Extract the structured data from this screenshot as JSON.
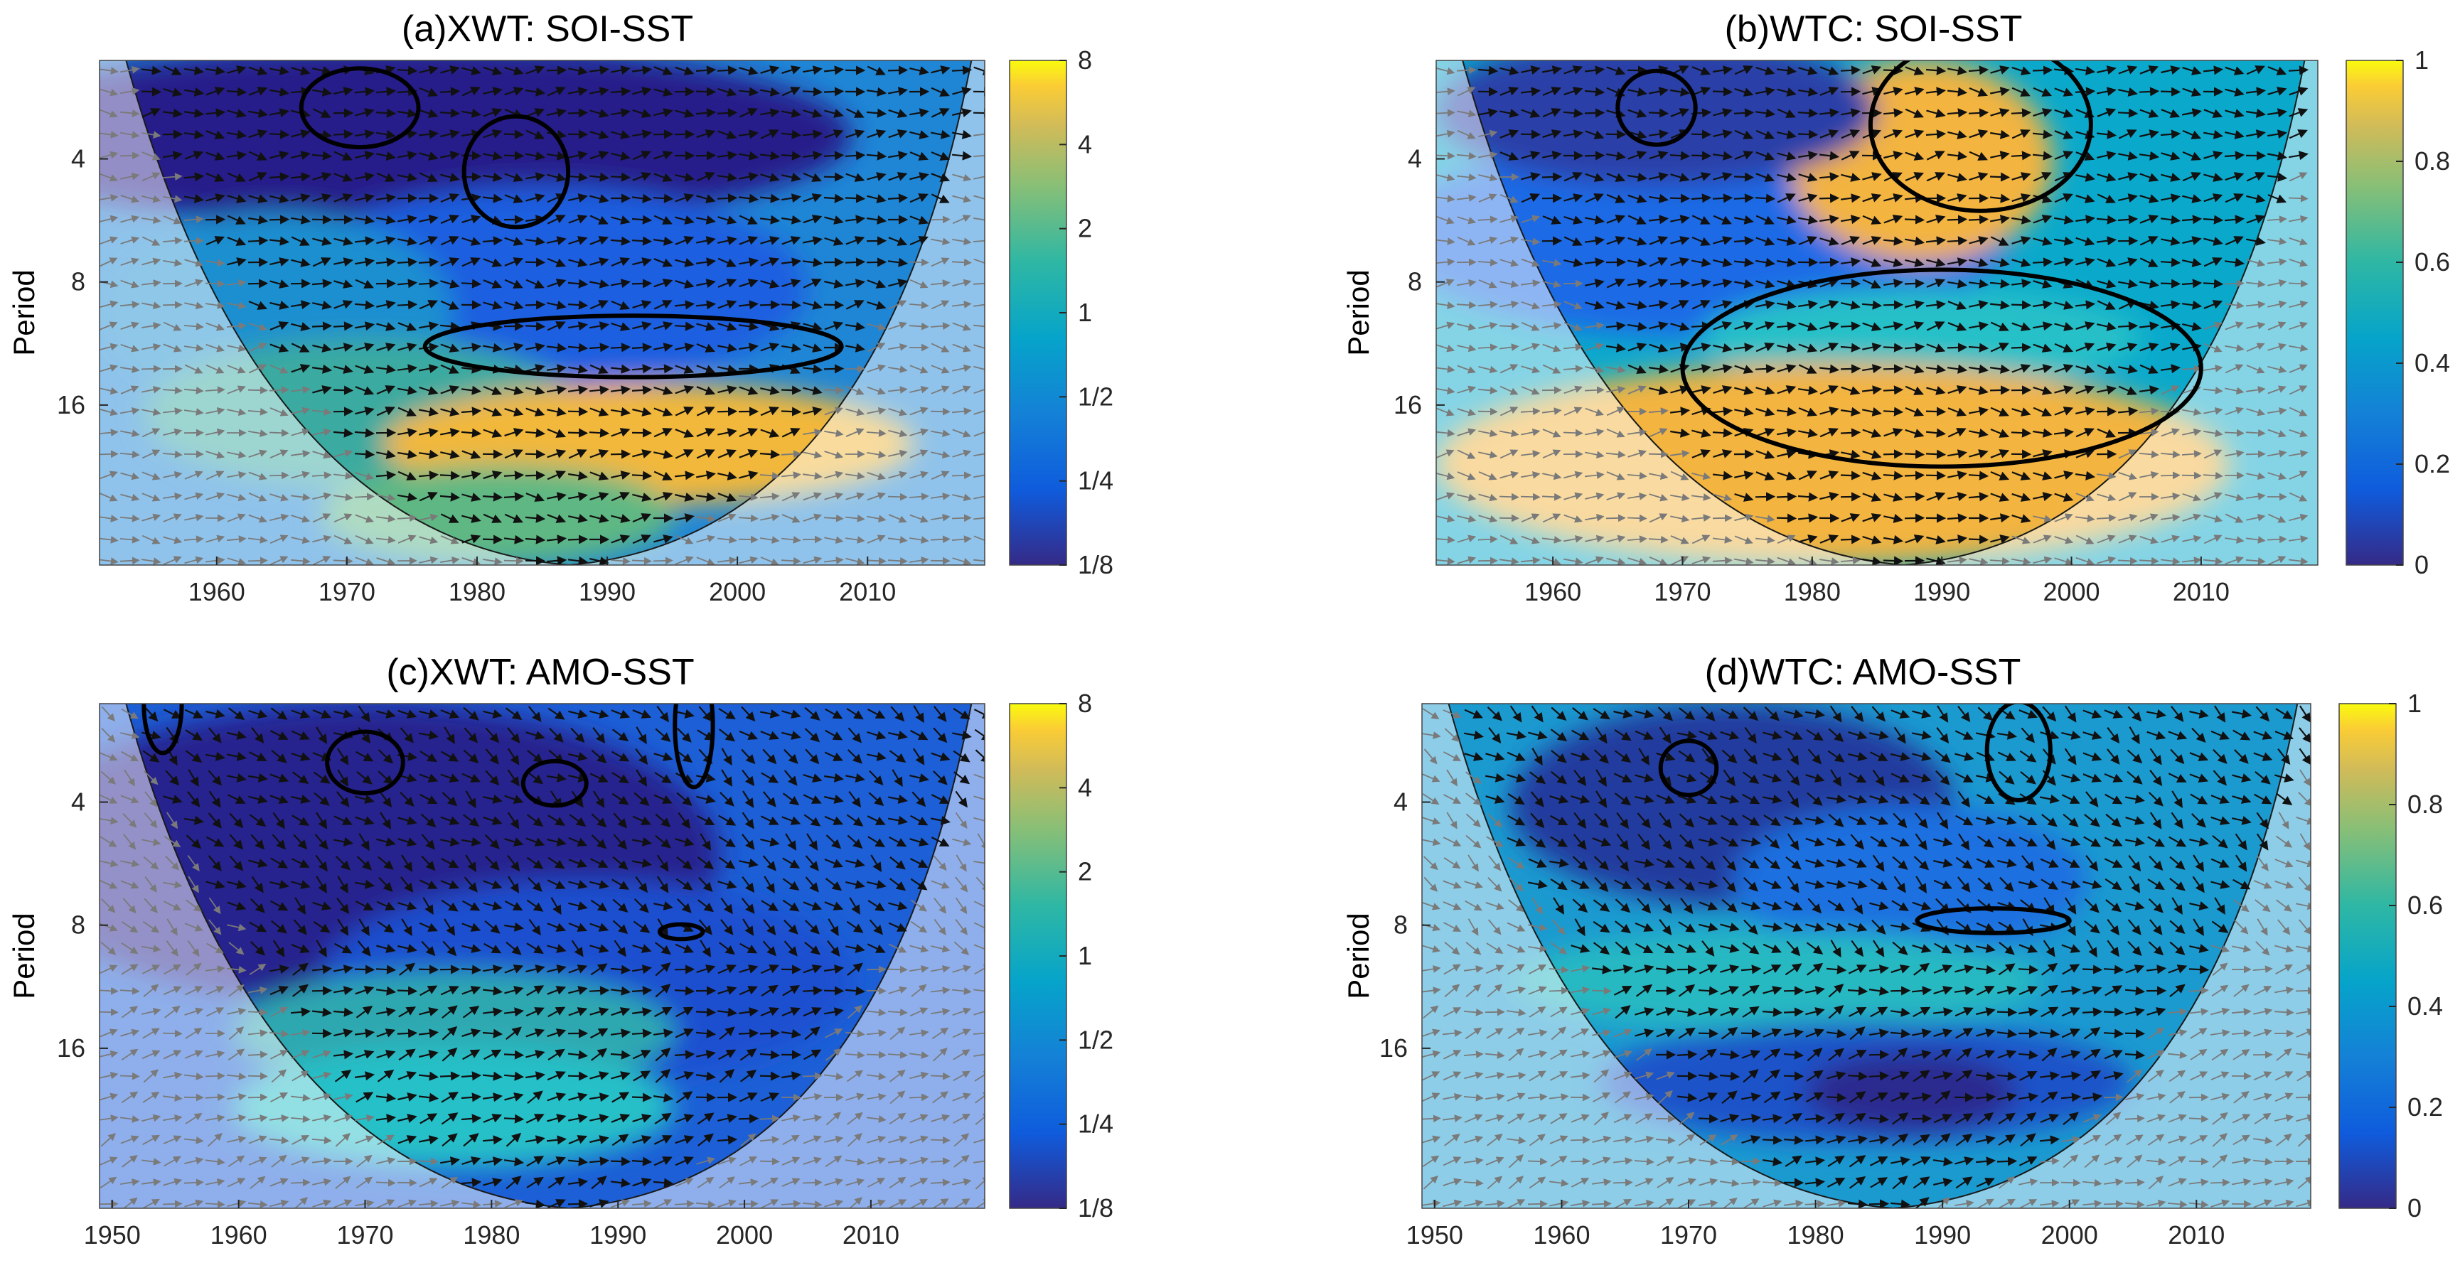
{
  "chart_data": [
    {
      "type": "heatmap",
      "id": "a",
      "title": "(a)XWT: SOI-SST",
      "ylabel": "Period",
      "xlabel": "",
      "xlim": [
        1951,
        2019
      ],
      "ylim_period_log2": [
        1.2,
        5.3
      ],
      "x_ticks": [
        "1960",
        "1970",
        "1980",
        "1990",
        "2000",
        "2010"
      ],
      "y_ticks": [
        "4",
        "8",
        "16"
      ],
      "colorbar_ticks": [
        "8",
        "4",
        "2",
        "1",
        "1/2",
        "1/4",
        "1/8"
      ],
      "colorbar_type": "power",
      "cone_of_influence": true,
      "significant_regions": [
        {
          "year_center": 1971,
          "period": 3.0,
          "year_halfwidth": 4.5,
          "log2_halfheight": 0.32
        },
        {
          "year_center": 1983,
          "period": 4.3,
          "year_halfwidth": 4.0,
          "log2_halfheight": 0.45
        },
        {
          "year_center": 1992,
          "period": 11.5,
          "year_halfwidth": 16.0,
          "log2_halfheight": 0.25
        }
      ]
    },
    {
      "type": "heatmap",
      "id": "b",
      "title": "(b)WTC: SOI-SST",
      "ylabel": "Period",
      "xlabel": "",
      "xlim": [
        1951,
        2019
      ],
      "ylim_period_log2": [
        1.2,
        5.3
      ],
      "x_ticks": [
        "1960",
        "1970",
        "1980",
        "1990",
        "2000",
        "2010"
      ],
      "y_ticks": [
        "4",
        "8",
        "16"
      ],
      "colorbar_ticks": [
        "1",
        "0.8",
        "0.6",
        "0.4",
        "0.2",
        "0"
      ],
      "colorbar_type": "coherence",
      "cone_of_influence": true,
      "significant_regions": [
        {
          "year_center": 1968,
          "period": 3.0,
          "year_halfwidth": 3.0,
          "log2_halfheight": 0.3
        },
        {
          "year_center": 1993,
          "period": 3.3,
          "year_halfwidth": 8.5,
          "log2_halfheight": 0.7
        },
        {
          "year_center": 1990,
          "period": 13.0,
          "year_halfwidth": 20.0,
          "log2_halfheight": 0.8
        }
      ]
    },
    {
      "type": "heatmap",
      "id": "c",
      "title": "(c)XWT: AMO-SST",
      "ylabel": "Period",
      "xlabel": "",
      "xlim": [
        1949,
        2019
      ],
      "ylim_period_log2": [
        1.2,
        5.3
      ],
      "x_ticks": [
        "1950",
        "1960",
        "1970",
        "1980",
        "1990",
        "2000",
        "2010"
      ],
      "y_ticks": [
        "4",
        "8",
        "16"
      ],
      "colorbar_ticks": [
        "8",
        "4",
        "2",
        "1",
        "1/2",
        "1/4",
        "1/8"
      ],
      "colorbar_type": "power",
      "cone_of_influence": true,
      "significant_regions": [
        {
          "year_center": 1954,
          "period": 2.3,
          "year_halfwidth": 1.5,
          "log2_halfheight": 0.4
        },
        {
          "year_center": 1970,
          "period": 3.2,
          "year_halfwidth": 3.0,
          "log2_halfheight": 0.25
        },
        {
          "year_center": 1985,
          "period": 3.6,
          "year_halfwidth": 2.5,
          "log2_halfheight": 0.18
        },
        {
          "year_center": 1996,
          "period": 2.6,
          "year_halfwidth": 1.5,
          "log2_halfheight": 0.5
        },
        {
          "year_center": 1995,
          "period": 8.3,
          "year_halfwidth": 1.7,
          "log2_halfheight": 0.06
        }
      ]
    },
    {
      "type": "heatmap",
      "id": "d",
      "title": "(d)WTC: AMO-SST",
      "ylabel": "Period",
      "xlabel": "",
      "xlim": [
        1949,
        2019
      ],
      "ylim_period_log2": [
        1.2,
        5.3
      ],
      "x_ticks": [
        "1950",
        "1960",
        "1970",
        "1980",
        "1990",
        "2000",
        "2010"
      ],
      "y_ticks": [
        "4",
        "8",
        "16"
      ],
      "colorbar_ticks": [
        "1",
        "0.8",
        "0.6",
        "0.4",
        "0.2",
        "0"
      ],
      "colorbar_type": "coherence",
      "cone_of_influence": true,
      "significant_regions": [
        {
          "year_center": 1970,
          "period": 3.3,
          "year_halfwidth": 2.2,
          "log2_halfheight": 0.22
        },
        {
          "year_center": 1996,
          "period": 3.0,
          "year_halfwidth": 2.5,
          "log2_halfheight": 0.4
        },
        {
          "year_center": 1994,
          "period": 7.8,
          "year_halfwidth": 6.0,
          "log2_halfheight": 0.1
        }
      ]
    }
  ]
}
